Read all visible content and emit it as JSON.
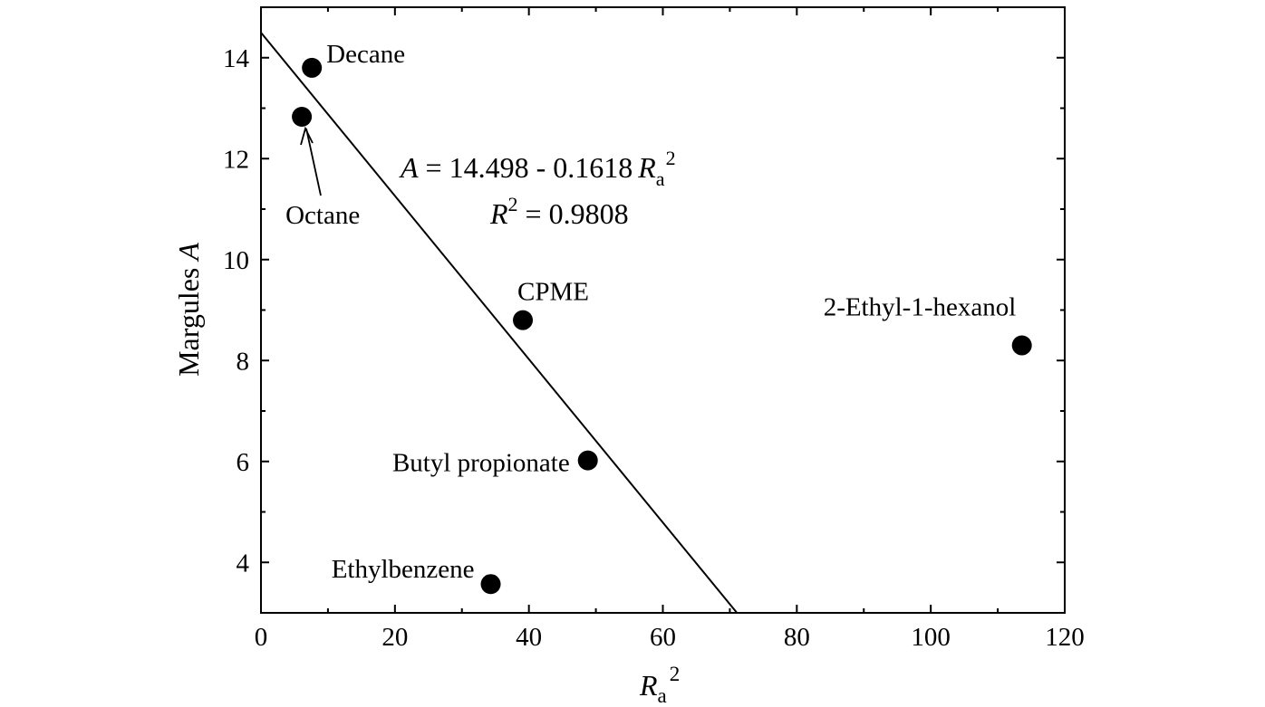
{
  "chart_data": {
    "type": "scatter",
    "xlabel": {
      "base": "R",
      "sub": "a",
      "sup": "2"
    },
    "ylabel": {
      "prefix": "Margules ",
      "italic": "A"
    },
    "xlim": [
      0,
      120
    ],
    "ylim": [
      3,
      15
    ],
    "xticks": [
      0,
      20,
      40,
      60,
      80,
      100,
      120
    ],
    "yticks": [
      4,
      6,
      8,
      10,
      12,
      14
    ],
    "grid": false,
    "points": [
      {
        "label": "Decane",
        "x": 7.6,
        "y": 13.8
      },
      {
        "label": "Octane",
        "x": 6.1,
        "y": 12.83
      },
      {
        "label": "CPME",
        "x": 39.1,
        "y": 8.8
      },
      {
        "label": "2-Ethyl-1-hexanol",
        "x": 113.6,
        "y": 8.3
      },
      {
        "label": "Butyl propionate",
        "x": 48.8,
        "y": 6.02
      },
      {
        "label": "Ethylbenzene",
        "x": 34.3,
        "y": 3.57
      }
    ],
    "fit": {
      "intercept": 14.498,
      "slope": -0.1618,
      "equation": {
        "lhs": "A",
        "middle": " = 14.498 - 0.1618",
        "var": "R",
        "sub": "a",
        "sup": "2"
      },
      "r2": {
        "var": "R",
        "sup": "2",
        "rest": " = 0.9808"
      }
    }
  }
}
